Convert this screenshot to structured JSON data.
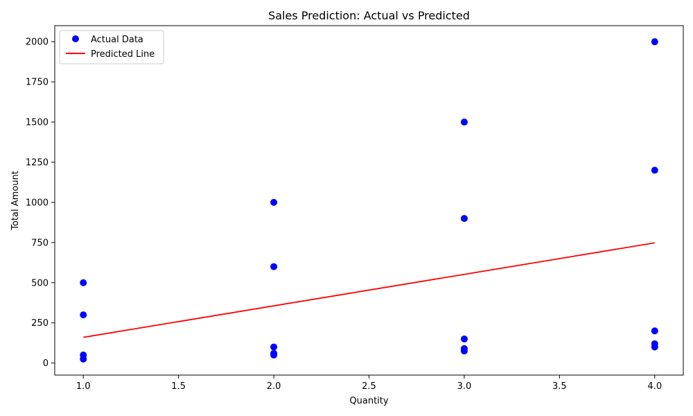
{
  "chart_data": {
    "type": "scatter",
    "title": "Sales Prediction: Actual vs Predicted",
    "xlabel": "Quantity",
    "ylabel": "Total Amount",
    "xlim": [
      0.85,
      4.15
    ],
    "ylim": [
      -75,
      2100
    ],
    "xticks": [
      1.0,
      1.5,
      2.0,
      2.5,
      3.0,
      3.5,
      4.0
    ],
    "xtick_labels": [
      "1.0",
      "1.5",
      "2.0",
      "2.5",
      "3.0",
      "3.5",
      "4.0"
    ],
    "yticks": [
      0,
      250,
      500,
      750,
      1000,
      1250,
      1500,
      1750,
      2000
    ],
    "ytick_labels": [
      "0",
      "250",
      "500",
      "750",
      "1000",
      "1250",
      "1500",
      "1750",
      "2000"
    ],
    "grid": false,
    "legend_position": "top-left",
    "series": [
      {
        "name": "Actual Data",
        "kind": "scatter",
        "color": "#0000ff",
        "points": [
          [
            1,
            500
          ],
          [
            1,
            300
          ],
          [
            1,
            50
          ],
          [
            1,
            25
          ],
          [
            2,
            1000
          ],
          [
            2,
            600
          ],
          [
            2,
            100
          ],
          [
            2,
            60
          ],
          [
            2,
            50
          ],
          [
            3,
            1500
          ],
          [
            3,
            900
          ],
          [
            3,
            150
          ],
          [
            3,
            90
          ],
          [
            3,
            75
          ],
          [
            4,
            2000
          ],
          [
            4,
            1200
          ],
          [
            4,
            200
          ],
          [
            4,
            120
          ],
          [
            4,
            100
          ]
        ]
      },
      {
        "name": "Predicted Line",
        "kind": "line",
        "color": "#ff0000",
        "points": [
          [
            1,
            160
          ],
          [
            4,
            748
          ]
        ]
      }
    ]
  }
}
